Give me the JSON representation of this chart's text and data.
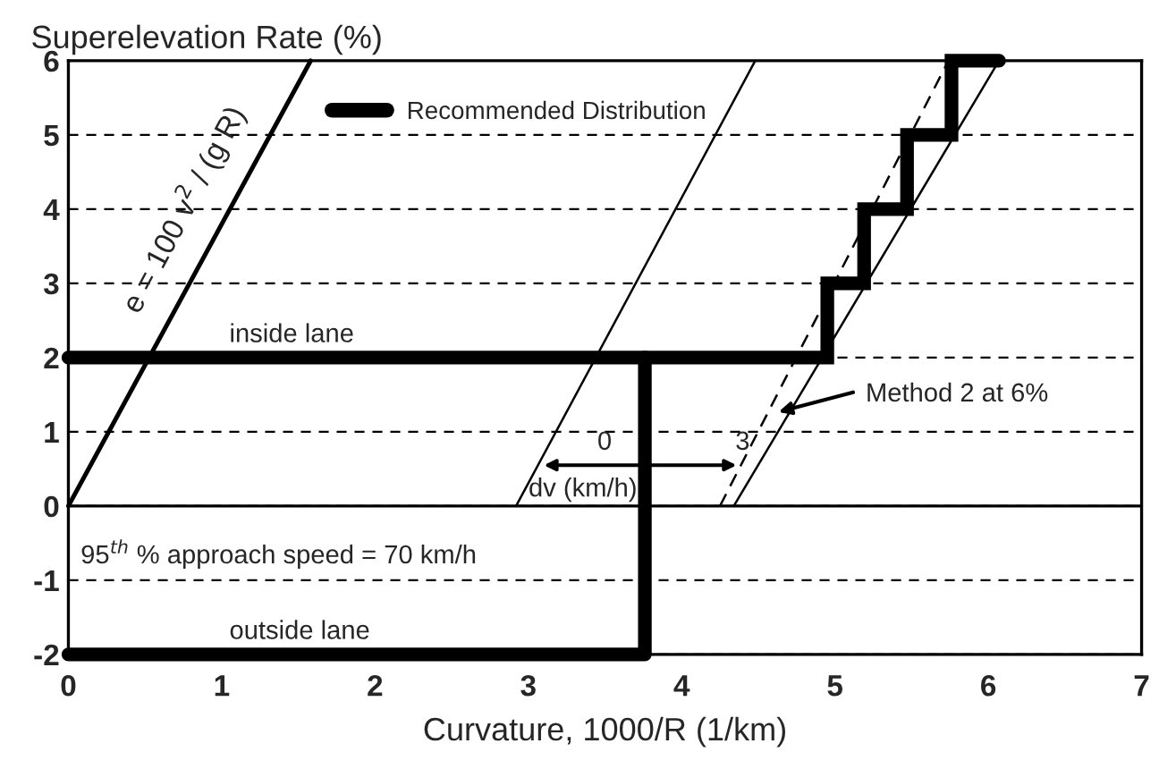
{
  "chart_data": {
    "type": "line",
    "ylabel": "Superelevation Rate (%)",
    "xlabel": "Curvature, 1000/R (1/km)",
    "xlim": [
      0,
      7
    ],
    "xticks": [
      0,
      1,
      2,
      3,
      4,
      5,
      6,
      7
    ],
    "ylim": [
      -2,
      6
    ],
    "yticks": [
      -2,
      -1,
      0,
      1,
      2,
      3,
      4,
      5,
      6
    ],
    "grid": "y",
    "legend": "top",
    "ref_lines": [
      {
        "axis": "y",
        "value": 0,
        "color": "#000000",
        "line_style": "solid"
      }
    ],
    "series": [
      {
        "name": "Recommended Distribution",
        "type": "step",
        "color": "#000000",
        "line_style": "solid",
        "x": [
          0,
          4.95,
          5.19,
          5.47,
          5.76,
          6.07
        ],
        "values": [
          2,
          3,
          4,
          5,
          6,
          6
        ]
      },
      {
        "color": "#000000",
        "line_style": "solid",
        "x": [
          0,
          3.76,
          3.76
        ],
        "values": [
          -2,
          -2,
          2
        ]
      },
      {
        "color": "#000000",
        "line_style": "solid",
        "x": [
          0,
          1.58
        ],
        "values": [
          0,
          6
        ]
      },
      {
        "color": "#000000",
        "line_style": "solid",
        "x": [
          2.92,
          4.48
        ],
        "values": [
          0,
          6
        ]
      },
      {
        "color": "#000000",
        "line_style": "dashed",
        "x": [
          4.25,
          5.74
        ],
        "values": [
          0,
          6
        ]
      },
      {
        "color": "#000000",
        "line_style": "solid",
        "x": [
          4.34,
          6.07
        ],
        "values": [
          0,
          6
        ]
      }
    ],
    "annotations": [
      "inside lane",
      "outside lane",
      "95$^{th}$ % approach speed = 70 km/h",
      "e = 100 v$^{2}$ / (g R)",
      "0",
      "3",
      {
        "text": "dv (km/h)",
        "x": 4.39,
        "y": 0.55
      },
      "Method 2 at 6%"
    ]
  }
}
